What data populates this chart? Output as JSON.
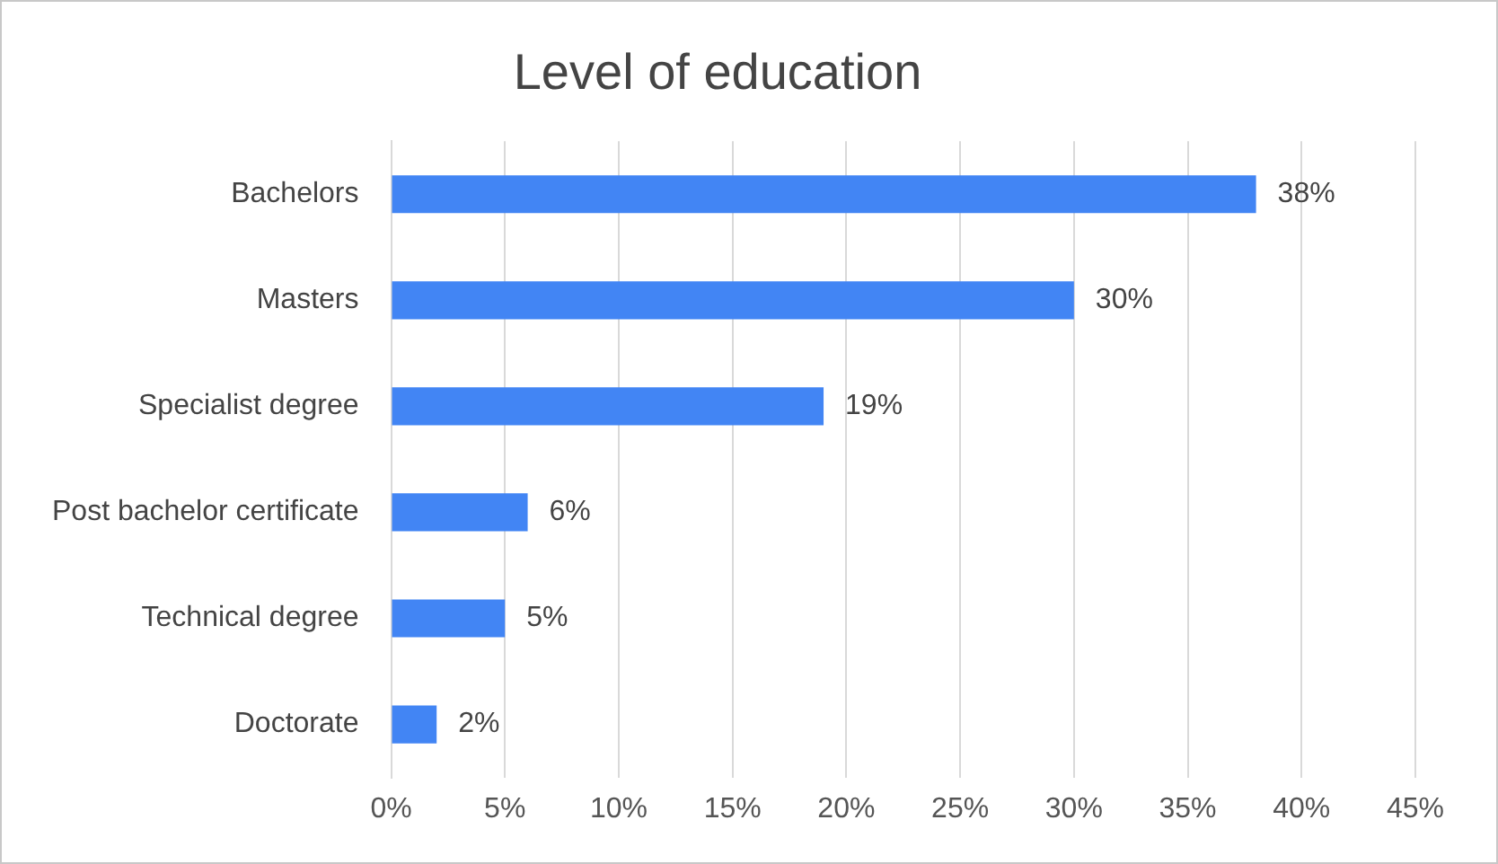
{
  "chart_data": {
    "type": "bar",
    "orientation": "horizontal",
    "title": "Level of education",
    "categories": [
      "Bachelors",
      "Masters",
      "Specialist degree",
      "Post bachelor certificate",
      "Technical degree",
      "Doctorate"
    ],
    "values": [
      38,
      30,
      19,
      6,
      5,
      2
    ],
    "value_labels": [
      "38%",
      "30%",
      "19%",
      "6%",
      "5%",
      "2%"
    ],
    "color": "#4285f4",
    "xlim": [
      0,
      45
    ],
    "xticks": [
      {
        "value": 0,
        "label": "0%"
      },
      {
        "value": 5,
        "label": "5%"
      },
      {
        "value": 10,
        "label": "10%"
      },
      {
        "value": 15,
        "label": "15%"
      },
      {
        "value": 20,
        "label": "20%"
      },
      {
        "value": 25,
        "label": "25%"
      },
      {
        "value": 30,
        "label": "30%"
      },
      {
        "value": 35,
        "label": "35%"
      },
      {
        "value": 40,
        "label": "40%"
      },
      {
        "value": 45,
        "label": "45%"
      }
    ],
    "grid": "x",
    "legend": false
  }
}
